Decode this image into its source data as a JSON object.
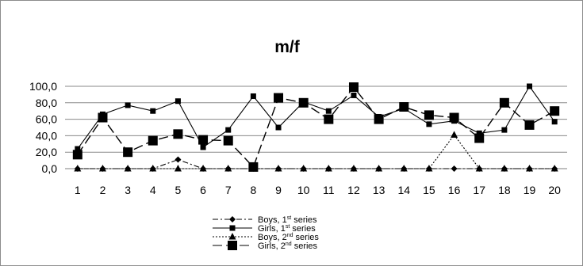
{
  "chart_data": {
    "type": "line",
    "title": "m/f",
    "xlabel": "",
    "ylabel": "",
    "x": [
      1,
      2,
      3,
      4,
      5,
      6,
      7,
      8,
      9,
      10,
      11,
      12,
      13,
      14,
      15,
      16,
      17,
      18,
      19,
      20
    ],
    "ylim": [
      0,
      100
    ],
    "yticks": [
      "0,0",
      "20,0",
      "40,0",
      "60,0",
      "80,0",
      "100,0"
    ],
    "grid": "horizontal",
    "legend_position": "bottom",
    "series": [
      {
        "name": "Boys, 1st series",
        "label_main": "Boys, 1",
        "label_sup": "st",
        "label_rest": " series",
        "marker": "diamond",
        "line": "dash-dot",
        "values": [
          0,
          0,
          0,
          0,
          11,
          0,
          0,
          0,
          0,
          0,
          0,
          0,
          0,
          0,
          0,
          0,
          0,
          0,
          0,
          0
        ]
      },
      {
        "name": "Girls, 1st series",
        "label_main": "Girls, 1",
        "label_sup": "st",
        "label_rest": " series",
        "marker": "small-square",
        "line": "solid",
        "values": [
          24,
          66,
          77,
          70,
          82,
          26,
          47,
          88,
          50,
          81,
          70,
          89,
          63,
          73,
          54,
          58,
          43,
          47,
          100,
          57
        ]
      },
      {
        "name": "Boys, 2nd series",
        "label_main": "Boys, 2",
        "label_sup": "nd",
        "label_rest": " series",
        "marker": "triangle",
        "line": "dotted",
        "values": [
          0,
          0,
          0,
          0,
          0,
          0,
          0,
          0,
          0,
          0,
          0,
          0,
          0,
          0,
          0,
          41,
          0,
          0,
          0,
          0
        ]
      },
      {
        "name": "Girls, 2nd series",
        "label_main": "Girls, 2",
        "label_sup": "nd",
        "label_rest": " series",
        "marker": "large-square",
        "line": "long-dash",
        "values": [
          17,
          62,
          20,
          34,
          42,
          35,
          34,
          2,
          86,
          80,
          60,
          99,
          60,
          75,
          65,
          62,
          37,
          80,
          53,
          70
        ]
      }
    ]
  }
}
